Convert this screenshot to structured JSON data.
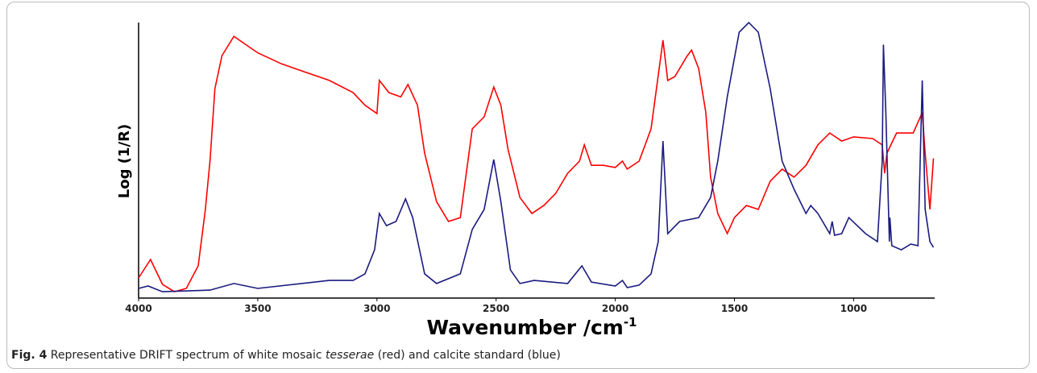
{
  "chart_data": {
    "type": "line",
    "ylabel": "Log (1/R)",
    "xlabel": "Wavenumber /cm",
    "xlabel_superscript": "-1",
    "xlim": [
      4000,
      660
    ],
    "ylim": [
      0,
      100
    ],
    "xticks": [
      4000,
      3500,
      3000,
      2500,
      2000,
      1500,
      1000
    ],
    "series": [
      {
        "name": "white mosaic tesserae",
        "color": "#ff0000",
        "x": [
          4000,
          3950,
          3900,
          3850,
          3800,
          3750,
          3720,
          3700,
          3680,
          3650,
          3600,
          3550,
          3500,
          3400,
          3300,
          3200,
          3100,
          3050,
          3000,
          2990,
          2950,
          2900,
          2870,
          2830,
          2800,
          2750,
          2700,
          2650,
          2600,
          2550,
          2510,
          2480,
          2450,
          2400,
          2350,
          2300,
          2250,
          2200,
          2150,
          2130,
          2100,
          2050,
          2000,
          1970,
          1950,
          1900,
          1850,
          1800,
          1780,
          1750,
          1700,
          1680,
          1650,
          1620,
          1600,
          1570,
          1530,
          1500,
          1450,
          1400,
          1350,
          1300,
          1250,
          1200,
          1150,
          1100,
          1050,
          1000,
          920,
          880,
          870,
          860,
          820,
          750,
          712,
          700,
          680,
          665
        ],
        "values": [
          7.3,
          14,
          5,
          2.3,
          3.5,
          11.7,
          32,
          50,
          76,
          88,
          95,
          92,
          89,
          85,
          82,
          79,
          74.6,
          70,
          67,
          79,
          74.6,
          73,
          77.5,
          70,
          52.6,
          35,
          27.8,
          29.2,
          61.4,
          65.8,
          76.6,
          70,
          54,
          36.5,
          30.7,
          33.6,
          38,
          45.3,
          49.7,
          55.6,
          48.2,
          48.2,
          47.4,
          49.7,
          46.8,
          49.7,
          61.4,
          93.6,
          79,
          80.4,
          87.7,
          90,
          83.3,
          67.3,
          43.9,
          30.7,
          23.4,
          29.2,
          33.6,
          32.2,
          42.4,
          46.8,
          43.9,
          48.2,
          55.6,
          59.9,
          57,
          58.5,
          57.9,
          55.6,
          45.3,
          52.6,
          59.9,
          59.9,
          67.3,
          52.6,
          32.2,
          50.7
        ]
      },
      {
        "name": "calcite standard",
        "color": "#1a1a80",
        "x": [
          4000,
          3960,
          3900,
          3700,
          3600,
          3500,
          3200,
          3100,
          3050,
          3010,
          2990,
          2960,
          2920,
          2880,
          2850,
          2800,
          2750,
          2650,
          2600,
          2550,
          2510,
          2480,
          2440,
          2400,
          2340,
          2200,
          2140,
          2100,
          2000,
          1970,
          1950,
          1900,
          1850,
          1820,
          1800,
          1780,
          1730,
          1650,
          1600,
          1570,
          1530,
          1480,
          1440,
          1400,
          1350,
          1300,
          1250,
          1200,
          1180,
          1150,
          1100,
          1090,
          1080,
          1050,
          1020,
          950,
          900,
          880,
          875,
          865,
          850,
          848,
          840,
          800,
          760,
          730,
          712,
          700,
          680,
          665
        ],
        "values": [
          3.5,
          4.4,
          2.3,
          2.9,
          5.3,
          3.5,
          6.4,
          6.4,
          8.8,
          17.5,
          30.7,
          26.3,
          27.8,
          36,
          29.2,
          8.8,
          5.3,
          8.8,
          24.9,
          32.2,
          50.3,
          35,
          10.2,
          5.3,
          6.4,
          5.3,
          11.7,
          5.8,
          4.4,
          6.4,
          3.8,
          4.7,
          8.8,
          20.5,
          57,
          23.4,
          27.8,
          29.2,
          36.5,
          49.7,
          73,
          96.5,
          100,
          96.5,
          76,
          49.7,
          39.5,
          30.7,
          33.6,
          30.7,
          23.4,
          27.8,
          22.8,
          23.4,
          29.2,
          23.4,
          20.5,
          49.7,
          92,
          67.3,
          20.5,
          29.2,
          19,
          17.5,
          19.6,
          19,
          79,
          32.2,
          20.5,
          18.4
        ]
      }
    ]
  },
  "caption": {
    "label": "Fig. 4",
    "text_before": " Representative DRIFT spectrum of white mosaic ",
    "italic": "tesserae",
    "text_after": " (red) and calcite standard (blue)"
  }
}
